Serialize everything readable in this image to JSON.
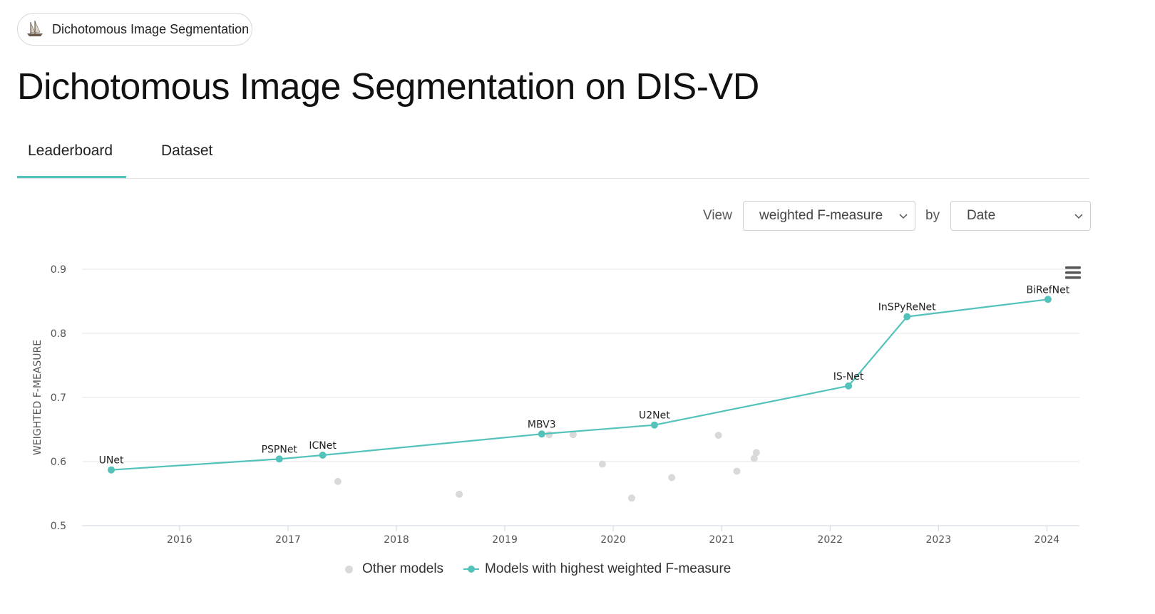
{
  "chip": {
    "label": "Dichotomous Image Segmentation",
    "icon": "sailing-ship-icon"
  },
  "title": "Dichotomous Image Segmentation on DIS-VD",
  "tabs": [
    {
      "label": "Leaderboard",
      "active": true
    },
    {
      "label": "Dataset",
      "active": false
    }
  ],
  "controls": {
    "view_label": "View",
    "metric_value": "weighted F-measure",
    "by_label": "by",
    "by_value": "Date"
  },
  "colors": {
    "accent": "#53c2bb",
    "other": "#d9d9d9",
    "grid": "#e6e6e6"
  },
  "chart_data": {
    "type": "scatter",
    "ylabel": "WEIGHTED F-MEASURE",
    "ylim": [
      0.5,
      0.9
    ],
    "yticks": [
      "0.5",
      "0.6",
      "0.7",
      "0.8",
      "0.9"
    ],
    "xlim": [
      2015.1,
      2024.3
    ],
    "xticks": [
      "2016",
      "2017",
      "2018",
      "2019",
      "2020",
      "2021",
      "2022",
      "2023",
      "2024"
    ],
    "grid": true,
    "legend": "bottom",
    "menu_icon": "hamburger-menu-icon",
    "series": [
      {
        "name": "Models with highest weighted F-measure",
        "kind": "line",
        "points": [
          {
            "label": "UNet",
            "x": 2015.37,
            "y": 0.587
          },
          {
            "label": "PSPNet",
            "x": 2016.92,
            "y": 0.604
          },
          {
            "label": "ICNet",
            "x": 2017.32,
            "y": 0.61
          },
          {
            "label": "MBV3",
            "x": 2019.34,
            "y": 0.643
          },
          {
            "label": "U2Net",
            "x": 2020.38,
            "y": 0.657
          },
          {
            "label": "IS-Net",
            "x": 2022.17,
            "y": 0.718
          },
          {
            "label": "InSPyReNet",
            "x": 2022.71,
            "y": 0.826
          },
          {
            "label": "BiRefNet",
            "x": 2024.01,
            "y": 0.853
          }
        ]
      },
      {
        "name": "Other models",
        "kind": "scatter",
        "points": [
          {
            "x": 2017.46,
            "y": 0.569
          },
          {
            "x": 2018.58,
            "y": 0.549
          },
          {
            "x": 2019.41,
            "y": 0.642
          },
          {
            "x": 2019.63,
            "y": 0.642
          },
          {
            "x": 2019.9,
            "y": 0.596
          },
          {
            "x": 2020.17,
            "y": 0.543
          },
          {
            "x": 2020.54,
            "y": 0.575
          },
          {
            "x": 2020.97,
            "y": 0.641
          },
          {
            "x": 2021.14,
            "y": 0.585
          },
          {
            "x": 2021.3,
            "y": 0.605
          },
          {
            "x": 2021.32,
            "y": 0.614
          }
        ]
      }
    ]
  }
}
